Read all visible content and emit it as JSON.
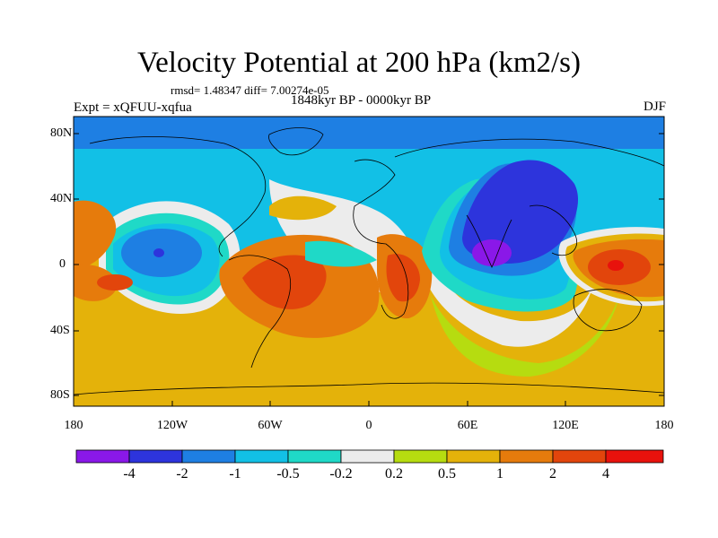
{
  "title": "Velocity Potential at 200 hPa (km2/s)",
  "stats": "rmsd= 1.48347 diff= 7.00274e-05",
  "experiment": "Expt = xQFUU-xqfua",
  "period": "1848kyr BP - 0000kyr BP",
  "season": "DJF",
  "lat_labels": [
    "80N",
    "40N",
    "0",
    "40S",
    "80S"
  ],
  "lon_labels": [
    "180",
    "120W",
    "60W",
    "0",
    "60E",
    "120E",
    "180"
  ],
  "colorbar": {
    "labels": [
      "-4",
      "-2",
      "-1",
      "-0.5",
      "-0.2",
      "0.2",
      "0.5",
      "1",
      "2",
      "4"
    ],
    "colors": [
      "#8a18e8",
      "#2d34dc",
      "#1e7fe3",
      "#12c0e6",
      "#1fd9c7",
      "#ececec",
      "#b6dc10",
      "#e4b20a",
      "#e67b0c",
      "#e2450c",
      "#e8120c"
    ]
  },
  "palette": {
    "neg4": "#8a18e8",
    "neg2": "#2d34dc",
    "neg1": "#1e7fe3",
    "neg05": "#12c0e6",
    "neg02": "#1fd9c7",
    "zero": "#ececec",
    "pos02": "#b6dc10",
    "pos05": "#e4b20a",
    "pos1": "#e67b0c",
    "pos2": "#e2450c",
    "pos4": "#e8120c"
  }
}
